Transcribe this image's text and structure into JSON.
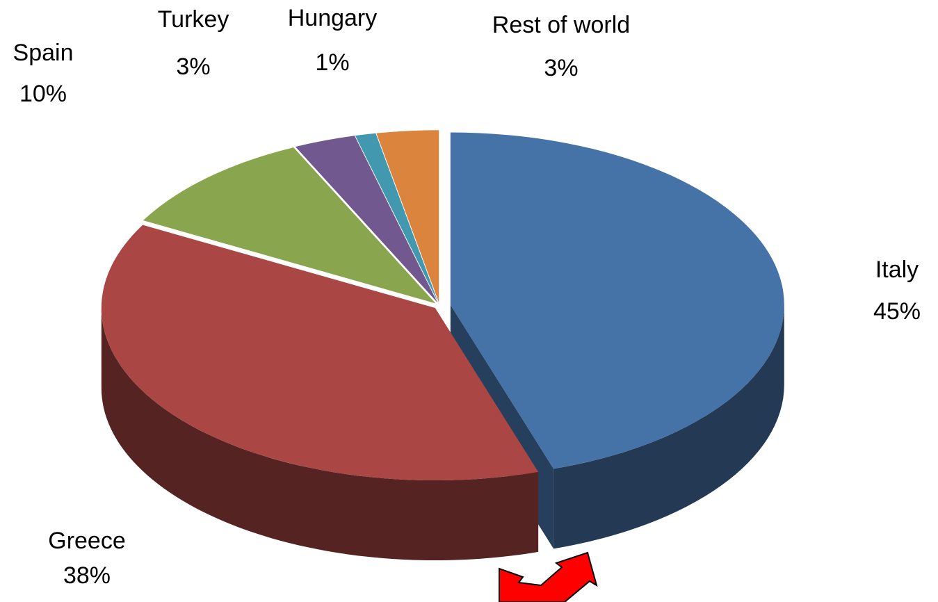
{
  "chart_data": {
    "type": "pie",
    "categories": [
      "Italy",
      "Greece",
      "Spain",
      "Turkey",
      "Hungary",
      "Rest of world"
    ],
    "values": [
      45,
      38,
      10,
      3,
      1,
      3
    ],
    "value_labels": [
      "45%",
      "38%",
      "10%",
      "3%",
      "1%",
      "3%"
    ],
    "colors": [
      "#4572a7",
      "#aa4643",
      "#89a54e",
      "#71588f",
      "#4198af",
      "#db843d"
    ]
  }
}
